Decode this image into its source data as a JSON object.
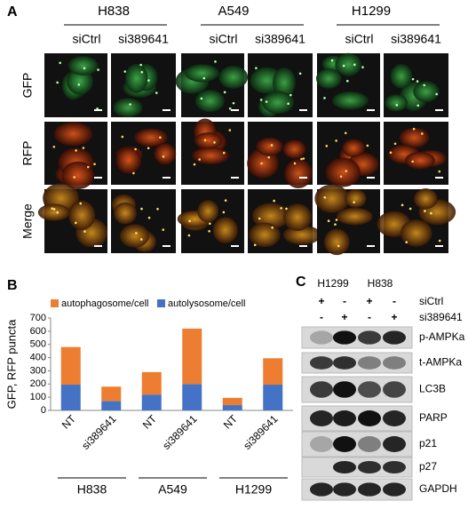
{
  "panel_a": {
    "label": "A",
    "cell_lines": [
      {
        "name": "H838",
        "conditions": [
          "siCtrl",
          "si389641"
        ]
      },
      {
        "name": "A549",
        "conditions": [
          "siCtrl",
          "si389641"
        ]
      },
      {
        "name": "H1299",
        "conditions": [
          "siCtrl",
          "si389641"
        ]
      }
    ],
    "rows": [
      "GFP",
      "RFP",
      "Merge"
    ]
  },
  "chart_data": {
    "type": "stacked-bar",
    "label": "B",
    "y_label": "GFP, RFP puncta",
    "categories": [
      "NT",
      "si389641",
      "NT",
      "si389641",
      "NT",
      "si389641"
    ],
    "category_groups": [
      "H838",
      "A549",
      "H1299"
    ],
    "series": [
      {
        "name": "autophagosome/cell",
        "color": "#ed7d31",
        "values": [
          285,
          110,
          170,
          420,
          55,
          200
        ]
      },
      {
        "name": "autolysosome/cell",
        "color": "#4472c4",
        "values": [
          195,
          70,
          120,
          200,
          40,
          195
        ]
      }
    ],
    "ylim": [
      0,
      700
    ],
    "yticks": [
      0,
      100,
      200,
      300,
      400,
      500,
      600,
      700
    ],
    "legend": "top"
  },
  "panel_c": {
    "label": "C",
    "cell_lines": [
      "H1299",
      "H838"
    ],
    "treatments": [
      {
        "name": "siCtrl",
        "marks": [
          "+",
          "-",
          "+",
          "-"
        ]
      },
      {
        "name": "si389641",
        "marks": [
          "-",
          "+",
          "-",
          "+"
        ]
      }
    ],
    "proteins": [
      "p-AMPKa",
      "t-AMPKa",
      "LC3B",
      "PARP",
      "p21",
      "p27",
      "GAPDH"
    ]
  }
}
